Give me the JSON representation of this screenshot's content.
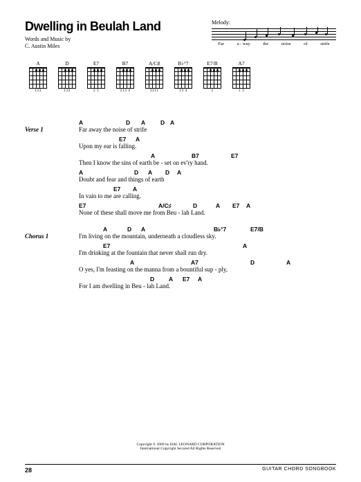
{
  "title": "Dwelling in Beulah Land",
  "byline1": "Words and Music by",
  "byline2": "C. Austin Miles",
  "melody_label": "Melody:",
  "melody_lyrics": [
    "Far",
    "a - way",
    "the",
    "noise",
    "of",
    "strife"
  ],
  "chord_diagrams": [
    {
      "name": "A",
      "fingers": "123"
    },
    {
      "name": "D",
      "fingers": "132"
    },
    {
      "name": "E7",
      "fingers": "2 1"
    },
    {
      "name": "B7",
      "fingers": "213 4"
    },
    {
      "name": "A/C♯",
      "fingers": "3111"
    },
    {
      "name": "B♭°7",
      "fingers": "13 4"
    },
    {
      "name": "E7/B",
      "fingers": "2"
    },
    {
      "name": "A7",
      "fingers": "1 3"
    }
  ],
  "sections": [
    {
      "label": "Verse 1",
      "lines": [
        {
          "chords": [
            [
              "A",
              0
            ],
            [
              "D",
              68
            ],
            [
              "A",
              90
            ],
            [
              "D",
              118
            ],
            [
              "A",
              132
            ]
          ],
          "lyric": "Far away the noise of strife"
        },
        {
          "chords": [
            [
              "E7",
              58
            ],
            [
              "A",
              82
            ]
          ],
          "lyric": "Upon my ear is falling."
        },
        {
          "chords": [
            [
              "A",
              104
            ],
            [
              "B7",
              163
            ],
            [
              "E7",
              220
            ]
          ],
          "lyric": "Then I know the sins of earth be - set on ev'ry hand."
        },
        {
          "chords": [
            [
              "A",
              0
            ],
            [
              "D",
              80
            ],
            [
              "A",
              100
            ],
            [
              "D",
              125
            ],
            [
              "A",
              142
            ]
          ],
          "lyric": "Doubt and fear and things of earth"
        },
        {
          "chords": [
            [
              "E7",
              50
            ],
            [
              "A",
              78
            ]
          ],
          "lyric": "In vain to me are calling."
        },
        {
          "chords": [
            [
              "E7",
              0
            ],
            [
              "A/C♯",
              115
            ],
            [
              "D",
              165
            ],
            [
              "A",
              198
            ],
            [
              "E7",
              222
            ],
            [
              "A",
              242
            ]
          ],
          "lyric": "None of these shall move me from Beu - lah Land."
        }
      ]
    },
    {
      "label": "Chorus 1",
      "lines": [
        {
          "chords": [
            [
              "A",
              35
            ],
            [
              "D",
              70
            ],
            [
              "A",
              90
            ],
            [
              "B♭°7",
              195
            ],
            [
              "E7/B",
              248
            ]
          ],
          "lyric": "I'm living on the mountain, underneath a cloudless sky."
        },
        {
          "chords": [
            [
              "E7",
              35
            ],
            [
              "A",
              237
            ]
          ],
          "lyric": "I'm drinking at the fountain that never shall run dry."
        },
        {
          "chords": [
            [
              "A",
              74
            ],
            [
              "A7",
              162
            ],
            [
              "D",
              248
            ],
            [
              "A",
              300
            ]
          ],
          "lyric": "O yes, I'm feasting on the manna from a bountiful sup - ply,"
        },
        {
          "chords": [
            [
              "D",
              103
            ],
            [
              "A",
              130
            ],
            [
              "E7",
              150
            ],
            [
              "A",
              172
            ]
          ],
          "lyric": "For I am dwelling in Beu - lah Land."
        }
      ]
    }
  ],
  "copyright_line1": "Copyright © 2009 by HAL LEONARD CORPORATION",
  "copyright_line2": "International Copyright Secured   All Rights Reserved",
  "page_number": "28",
  "book_type": "GUITAR CHORD SONGBOOK"
}
